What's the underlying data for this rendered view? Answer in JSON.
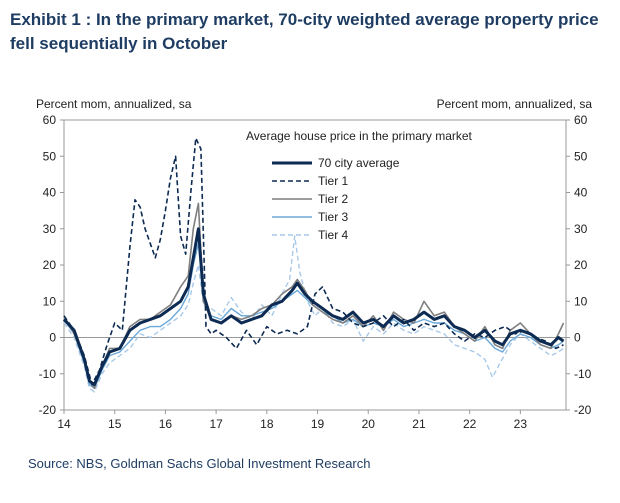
{
  "title": "Exhibit 1 : In the primary market, 70-city weighted average property price fell sequentially in October",
  "source": "Source: NBS, Goldman Sachs Global Investment Research",
  "chart_data": {
    "type": "line",
    "left_axis_label": "Percent mom, annualized, sa",
    "right_axis_label": "Percent mom, annualized, sa",
    "legend_title": "Average house price in the primary market",
    "legend_position": "top-right",
    "xlim": [
      14,
      23.9
    ],
    "ylim": [
      -20,
      60
    ],
    "x_ticks": [
      14,
      15,
      16,
      17,
      18,
      19,
      20,
      21,
      22,
      23
    ],
    "x_tick_labels": [
      "14",
      "15",
      "16",
      "17",
      "18",
      "19",
      "20",
      "21",
      "22",
      "23"
    ],
    "y_ticks": [
      -20,
      -10,
      0,
      10,
      20,
      30,
      40,
      50,
      60
    ],
    "series": [
      {
        "name": "70 city average",
        "color": "#0d2b52",
        "dash": "solid",
        "width": 3,
        "points": [
          [
            14.0,
            5
          ],
          [
            14.2,
            2
          ],
          [
            14.4,
            -6
          ],
          [
            14.5,
            -12
          ],
          [
            14.6,
            -13
          ],
          [
            14.75,
            -8
          ],
          [
            14.9,
            -4
          ],
          [
            15.1,
            -3
          ],
          [
            15.3,
            2
          ],
          [
            15.5,
            4
          ],
          [
            15.7,
            5
          ],
          [
            15.9,
            6
          ],
          [
            16.1,
            8
          ],
          [
            16.3,
            10
          ],
          [
            16.45,
            14
          ],
          [
            16.55,
            22
          ],
          [
            16.65,
            30
          ],
          [
            16.75,
            12
          ],
          [
            16.9,
            5
          ],
          [
            17.1,
            4
          ],
          [
            17.3,
            6
          ],
          [
            17.5,
            4
          ],
          [
            17.7,
            5
          ],
          [
            17.9,
            6
          ],
          [
            18.1,
            9
          ],
          [
            18.3,
            10
          ],
          [
            18.5,
            13
          ],
          [
            18.6,
            15
          ],
          [
            18.75,
            12
          ],
          [
            18.9,
            10
          ],
          [
            19.1,
            8
          ],
          [
            19.3,
            6
          ],
          [
            19.5,
            5
          ],
          [
            19.7,
            7
          ],
          [
            19.9,
            4
          ],
          [
            20.1,
            5
          ],
          [
            20.3,
            3
          ],
          [
            20.5,
            6
          ],
          [
            20.7,
            4
          ],
          [
            20.9,
            5
          ],
          [
            21.1,
            7
          ],
          [
            21.3,
            5
          ],
          [
            21.5,
            6
          ],
          [
            21.7,
            3
          ],
          [
            21.9,
            2
          ],
          [
            22.1,
            0
          ],
          [
            22.3,
            2
          ],
          [
            22.5,
            -1
          ],
          [
            22.65,
            -2
          ],
          [
            22.8,
            1
          ],
          [
            23.0,
            2
          ],
          [
            23.2,
            1
          ],
          [
            23.4,
            -1
          ],
          [
            23.6,
            -2
          ],
          [
            23.75,
            0
          ],
          [
            23.85,
            -1
          ]
        ]
      },
      {
        "name": "Tier 1",
        "color": "#0d2b52",
        "dash": "5,3",
        "width": 1.6,
        "points": [
          [
            14.0,
            6
          ],
          [
            14.2,
            2
          ],
          [
            14.4,
            -5
          ],
          [
            14.55,
            -13
          ],
          [
            14.7,
            -9
          ],
          [
            14.85,
            -2
          ],
          [
            15.0,
            4
          ],
          [
            15.15,
            2
          ],
          [
            15.3,
            25
          ],
          [
            15.4,
            38
          ],
          [
            15.5,
            36
          ],
          [
            15.6,
            30
          ],
          [
            15.7,
            26
          ],
          [
            15.8,
            22
          ],
          [
            15.9,
            27
          ],
          [
            16.0,
            35
          ],
          [
            16.1,
            44
          ],
          [
            16.2,
            50
          ],
          [
            16.3,
            28
          ],
          [
            16.4,
            23
          ],
          [
            16.5,
            40
          ],
          [
            16.6,
            55
          ],
          [
            16.7,
            52
          ],
          [
            16.8,
            3
          ],
          [
            16.9,
            1
          ],
          [
            17.0,
            2
          ],
          [
            17.2,
            0
          ],
          [
            17.4,
            -3
          ],
          [
            17.6,
            2
          ],
          [
            17.8,
            -2
          ],
          [
            18.0,
            3
          ],
          [
            18.2,
            1
          ],
          [
            18.4,
            2
          ],
          [
            18.6,
            1
          ],
          [
            18.8,
            3
          ],
          [
            18.95,
            12
          ],
          [
            19.1,
            14
          ],
          [
            19.3,
            8
          ],
          [
            19.5,
            7
          ],
          [
            19.7,
            4
          ],
          [
            19.9,
            3
          ],
          [
            20.1,
            4
          ],
          [
            20.3,
            6
          ],
          [
            20.5,
            3
          ],
          [
            20.7,
            5
          ],
          [
            20.9,
            2
          ],
          [
            21.1,
            4
          ],
          [
            21.3,
            3
          ],
          [
            21.5,
            4
          ],
          [
            21.7,
            1
          ],
          [
            21.9,
            -1
          ],
          [
            22.1,
            1
          ],
          [
            22.3,
            0
          ],
          [
            22.5,
            2
          ],
          [
            22.7,
            3
          ],
          [
            22.9,
            1
          ],
          [
            23.1,
            2
          ],
          [
            23.3,
            0
          ],
          [
            23.5,
            -1
          ],
          [
            23.7,
            -3
          ],
          [
            23.85,
            -2
          ]
        ]
      },
      {
        "name": "Tier 2",
        "color": "#7f7f7f",
        "dash": "solid",
        "width": 1.6,
        "points": [
          [
            14.0,
            6
          ],
          [
            14.2,
            1
          ],
          [
            14.4,
            -6
          ],
          [
            14.5,
            -12
          ],
          [
            14.6,
            -14
          ],
          [
            14.75,
            -8
          ],
          [
            14.9,
            -3
          ],
          [
            15.1,
            -3
          ],
          [
            15.3,
            3
          ],
          [
            15.5,
            5
          ],
          [
            15.7,
            5
          ],
          [
            15.9,
            7
          ],
          [
            16.1,
            9
          ],
          [
            16.3,
            14
          ],
          [
            16.45,
            17
          ],
          [
            16.55,
            30
          ],
          [
            16.65,
            37
          ],
          [
            16.75,
            10
          ],
          [
            16.9,
            5
          ],
          [
            17.1,
            4
          ],
          [
            17.3,
            6
          ],
          [
            17.5,
            5
          ],
          [
            17.7,
            6
          ],
          [
            17.9,
            8
          ],
          [
            18.1,
            9
          ],
          [
            18.3,
            12
          ],
          [
            18.5,
            14
          ],
          [
            18.6,
            16
          ],
          [
            18.75,
            13
          ],
          [
            18.9,
            9
          ],
          [
            19.1,
            7
          ],
          [
            19.3,
            5
          ],
          [
            19.5,
            4
          ],
          [
            19.7,
            6
          ],
          [
            19.9,
            3
          ],
          [
            20.1,
            6
          ],
          [
            20.3,
            2
          ],
          [
            20.5,
            7
          ],
          [
            20.7,
            5
          ],
          [
            20.9,
            4
          ],
          [
            21.1,
            10
          ],
          [
            21.3,
            6
          ],
          [
            21.5,
            7
          ],
          [
            21.7,
            3
          ],
          [
            21.9,
            1
          ],
          [
            22.1,
            -1
          ],
          [
            22.3,
            3
          ],
          [
            22.5,
            -2
          ],
          [
            22.65,
            -3
          ],
          [
            22.8,
            2
          ],
          [
            23.0,
            4
          ],
          [
            23.2,
            1
          ],
          [
            23.4,
            -2
          ],
          [
            23.6,
            -3
          ],
          [
            23.75,
            1
          ],
          [
            23.85,
            4
          ]
        ]
      },
      {
        "name": "Tier 3",
        "color": "#6aa8d8",
        "dash": "solid",
        "width": 1.4,
        "points": [
          [
            14.0,
            5
          ],
          [
            14.2,
            1
          ],
          [
            14.4,
            -7
          ],
          [
            14.5,
            -13
          ],
          [
            14.6,
            -14
          ],
          [
            14.75,
            -9
          ],
          [
            14.9,
            -5
          ],
          [
            15.1,
            -4
          ],
          [
            15.3,
            -1
          ],
          [
            15.5,
            2
          ],
          [
            15.7,
            3
          ],
          [
            15.9,
            3
          ],
          [
            16.1,
            5
          ],
          [
            16.3,
            8
          ],
          [
            16.45,
            12
          ],
          [
            16.55,
            20
          ],
          [
            16.65,
            26
          ],
          [
            16.75,
            10
          ],
          [
            16.9,
            6
          ],
          [
            17.1,
            5
          ],
          [
            17.3,
            8
          ],
          [
            17.5,
            6
          ],
          [
            17.7,
            6
          ],
          [
            17.9,
            7
          ],
          [
            18.1,
            8
          ],
          [
            18.3,
            10
          ],
          [
            18.5,
            12
          ],
          [
            18.6,
            13
          ],
          [
            18.75,
            11
          ],
          [
            18.9,
            9
          ],
          [
            19.1,
            7
          ],
          [
            19.3,
            6
          ],
          [
            19.5,
            4
          ],
          [
            19.7,
            5
          ],
          [
            19.9,
            3
          ],
          [
            20.1,
            4
          ],
          [
            20.3,
            3
          ],
          [
            20.5,
            5
          ],
          [
            20.7,
            3
          ],
          [
            20.9,
            4
          ],
          [
            21.1,
            5
          ],
          [
            21.3,
            4
          ],
          [
            21.5,
            4
          ],
          [
            21.7,
            2
          ],
          [
            21.9,
            1
          ],
          [
            22.1,
            -1
          ],
          [
            22.3,
            0
          ],
          [
            22.5,
            -3
          ],
          [
            22.65,
            -4
          ],
          [
            22.8,
            -1
          ],
          [
            23.0,
            1
          ],
          [
            23.2,
            0
          ],
          [
            23.4,
            -2
          ],
          [
            23.6,
            -3
          ],
          [
            23.75,
            -2
          ],
          [
            23.85,
            -1
          ]
        ]
      },
      {
        "name": "Tier 4",
        "color": "#a9c9e8",
        "dash": "5,3",
        "width": 1.4,
        "points": [
          [
            14.0,
            4
          ],
          [
            14.2,
            0
          ],
          [
            14.4,
            -8
          ],
          [
            14.5,
            -14
          ],
          [
            14.6,
            -15
          ],
          [
            14.75,
            -10
          ],
          [
            14.9,
            -7
          ],
          [
            15.1,
            -5
          ],
          [
            15.3,
            -3
          ],
          [
            15.5,
            1
          ],
          [
            15.7,
            0
          ],
          [
            15.9,
            2
          ],
          [
            16.1,
            4
          ],
          [
            16.3,
            6
          ],
          [
            16.45,
            9
          ],
          [
            16.55,
            15
          ],
          [
            16.65,
            20
          ],
          [
            16.75,
            9
          ],
          [
            16.9,
            8
          ],
          [
            17.1,
            6
          ],
          [
            17.3,
            11
          ],
          [
            17.5,
            7
          ],
          [
            17.7,
            5
          ],
          [
            17.9,
            9
          ],
          [
            18.1,
            6
          ],
          [
            18.3,
            12
          ],
          [
            18.45,
            16
          ],
          [
            18.55,
            28
          ],
          [
            18.65,
            18
          ],
          [
            18.8,
            10
          ],
          [
            18.95,
            6
          ],
          [
            19.1,
            8
          ],
          [
            19.3,
            4
          ],
          [
            19.5,
            3
          ],
          [
            19.7,
            5
          ],
          [
            19.9,
            -1
          ],
          [
            20.1,
            3
          ],
          [
            20.3,
            1
          ],
          [
            20.5,
            4
          ],
          [
            20.7,
            2
          ],
          [
            20.9,
            1
          ],
          [
            21.1,
            3
          ],
          [
            21.3,
            2
          ],
          [
            21.5,
            1
          ],
          [
            21.7,
            -2
          ],
          [
            21.9,
            -3
          ],
          [
            22.1,
            -4
          ],
          [
            22.3,
            -6
          ],
          [
            22.45,
            -11
          ],
          [
            22.6,
            -7
          ],
          [
            22.8,
            -2
          ],
          [
            23.0,
            1
          ],
          [
            23.2,
            -1
          ],
          [
            23.4,
            -3
          ],
          [
            23.6,
            -5
          ],
          [
            23.75,
            -4
          ],
          [
            23.85,
            -3
          ]
        ]
      }
    ]
  }
}
